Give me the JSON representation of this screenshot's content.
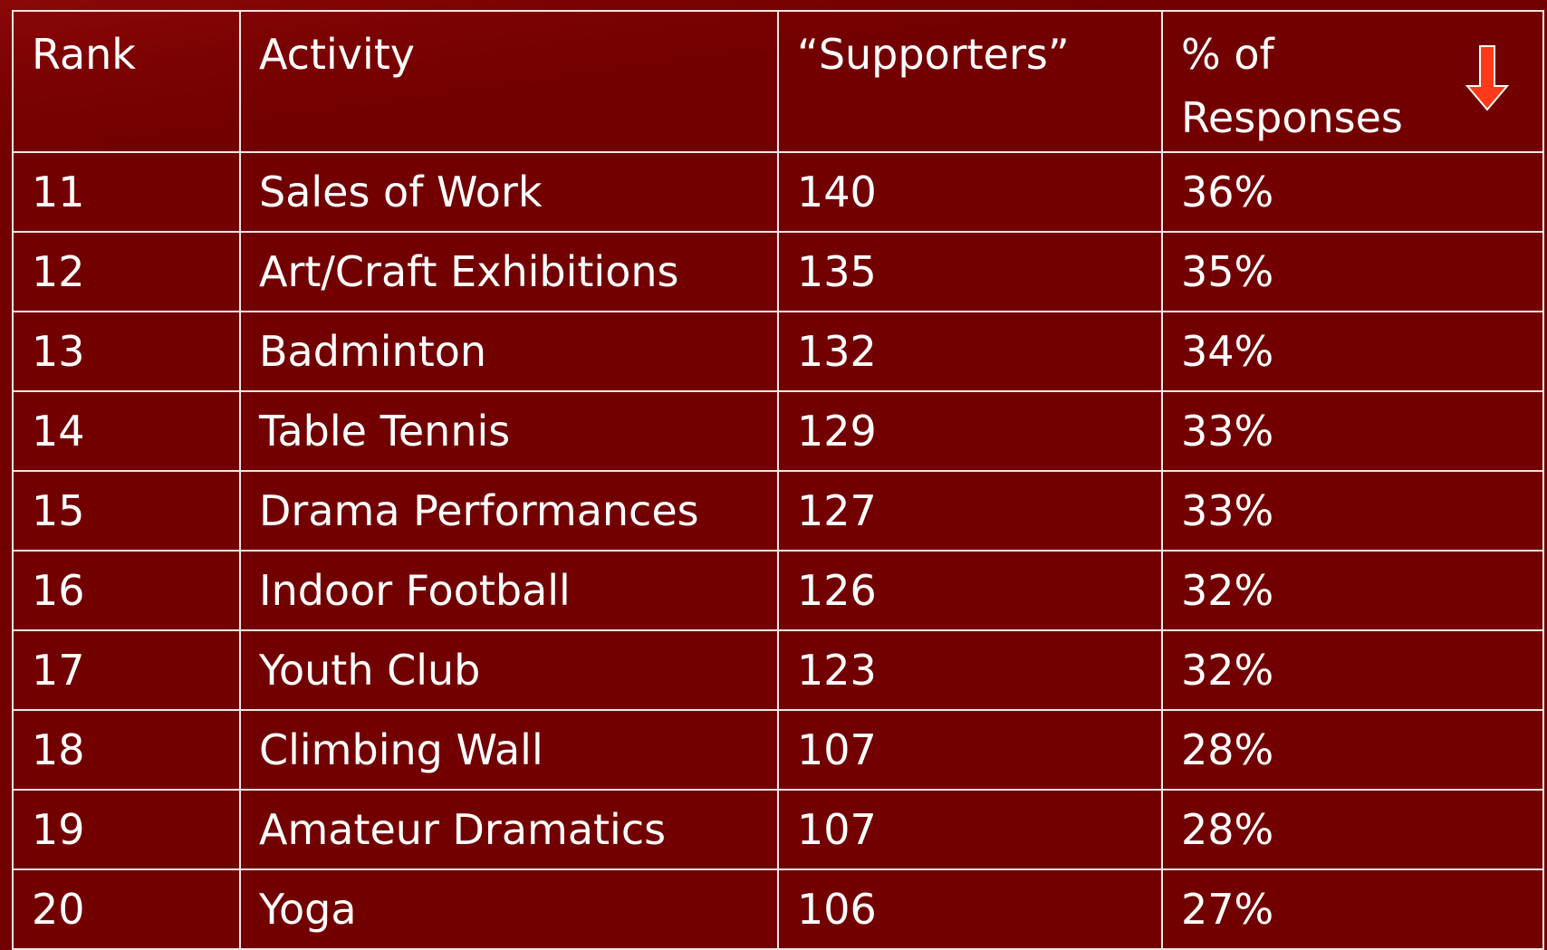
{
  "table": {
    "header": [
      "Rank",
      "Activity",
      "“Supporters”",
      "% of Responses"
    ],
    "rows": [
      [
        "11",
        "Sales of Work",
        "140",
        "36%"
      ],
      [
        "12",
        "Art/Craft Exhibitions",
        "135",
        "35%"
      ],
      [
        "13",
        "Badminton",
        "132",
        "34%"
      ],
      [
        "14",
        "Table Tennis",
        "129",
        "33%"
      ],
      [
        "15",
        "Drama Performances",
        "127",
        "33%"
      ],
      [
        "16",
        "Indoor Football",
        "126",
        "32%"
      ],
      [
        "17",
        "Youth Club",
        "123",
        "32%"
      ],
      [
        "18",
        "Climbing Wall",
        "107",
        "28%"
      ],
      [
        "19",
        "Amateur Dramatics",
        "107",
        "28%"
      ],
      [
        "20",
        "Yoga",
        "106",
        "27%"
      ]
    ]
  }
}
